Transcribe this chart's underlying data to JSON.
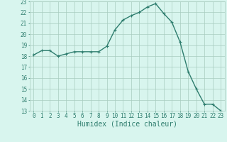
{
  "x": [
    0,
    1,
    2,
    3,
    4,
    5,
    6,
    7,
    8,
    9,
    10,
    11,
    12,
    13,
    14,
    15,
    16,
    17,
    18,
    19,
    20,
    21,
    22,
    23
  ],
  "y": [
    18.1,
    18.5,
    18.5,
    18.0,
    18.2,
    18.4,
    18.4,
    18.4,
    18.4,
    18.9,
    20.4,
    21.3,
    21.7,
    22.0,
    22.5,
    22.8,
    21.9,
    21.1,
    19.3,
    16.6,
    15.0,
    13.6,
    13.6,
    13.0
  ],
  "line_color": "#2e7d6e",
  "marker": "+",
  "markersize": 3,
  "linewidth": 1.0,
  "xlabel": "Humidex (Indice chaleur)",
  "xlim": [
    -0.5,
    23.5
  ],
  "ylim": [
    13,
    23
  ],
  "yticks": [
    13,
    14,
    15,
    16,
    17,
    18,
    19,
    20,
    21,
    22,
    23
  ],
  "xticks": [
    0,
    1,
    2,
    3,
    4,
    5,
    6,
    7,
    8,
    9,
    10,
    11,
    12,
    13,
    14,
    15,
    16,
    17,
    18,
    19,
    20,
    21,
    22,
    23
  ],
  "bg_color": "#d8f5ee",
  "grid_color": "#a8ccc0",
  "tick_label_fontsize": 5.5,
  "xlabel_fontsize": 7,
  "font_family": "monospace"
}
